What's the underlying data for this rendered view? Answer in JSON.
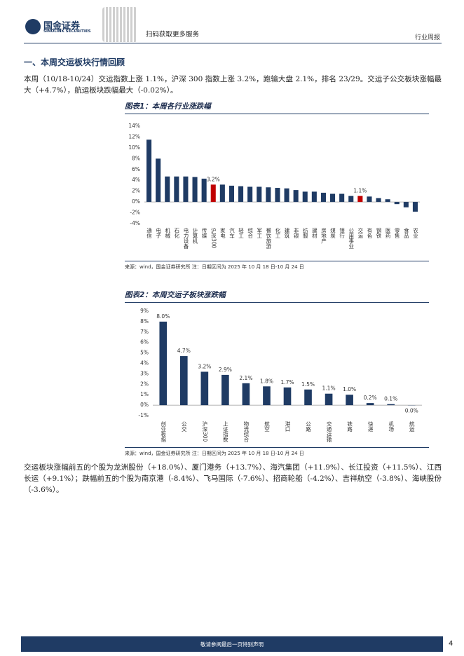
{
  "header": {
    "brand": "国金证券",
    "brand_en": "SINOLINK SECURITIES",
    "qr_caption": "扫码获取更多服务",
    "report_type": "行业周报"
  },
  "section_title": "一、本周交运板块行情回顾",
  "paragraphs": [
    "本周（10/18-10/24）交运指数上涨 1.1%，沪深 300 指数上涨 3.2%，跑输大盘 2.1%，排名 23/29。交运子公交板块涨幅最大（+4.7%），航运板块跌幅最大（-0.02%）。",
    "交运板块涨幅前五的个股为龙洲股份（+18.0%）、厦门港务（+13.7%）、海汽集团（+11.9%）、长江投资（+11.5%）、江西长运（+9.1%）；跌幅前五的个股为南京港（-8.4%）、飞马国际（-7.6%）、招商轮船（-4.2%）、吉祥航空（-3.8%）、海峡股份（-3.6%）。"
  ],
  "chart_data": [
    {
      "type": "bar",
      "title": "图表1：本周各行业涨跌幅",
      "note": "来源：wind，国金证券研究所   注：日期区间为 2025 年 10 月 18 日-10 月 24 日",
      "categories": [
        "通信",
        "电子",
        "机械",
        "石化",
        "电力设备",
        "计算机",
        "传媒",
        "沪深300",
        "家电",
        "汽车",
        "轻工",
        "综合",
        "军工",
        "餐饮旅游",
        "化工",
        "建筑",
        "非银",
        "纺服",
        "建材",
        "房地产",
        "煤炭",
        "银行",
        "公用事业",
        "交运",
        "有色",
        "钢铁",
        "医药",
        "零售",
        "食品",
        "农业"
      ],
      "values": [
        11.5,
        8.0,
        4.7,
        4.7,
        4.7,
        4.6,
        4.3,
        3.2,
        3.2,
        3.0,
        2.9,
        2.8,
        2.8,
        2.7,
        2.6,
        2.5,
        2.2,
        1.9,
        1.9,
        1.7,
        1.5,
        1.5,
        1.1,
        1.1,
        1.0,
        0.7,
        0.5,
        -0.4,
        -1.0,
        -1.8
      ],
      "value_labels": [
        null,
        null,
        null,
        null,
        null,
        null,
        null,
        "3.2%",
        null,
        null,
        null,
        null,
        null,
        null,
        null,
        null,
        null,
        null,
        null,
        null,
        null,
        null,
        null,
        "1.1%",
        null,
        null,
        null,
        null,
        null,
        null
      ],
      "colors": [
        "#1f3b64",
        "#1f3b64",
        "#1f3b64",
        "#1f3b64",
        "#1f3b64",
        "#1f3b64",
        "#1f3b64",
        "#c00000",
        "#1f3b64",
        "#1f3b64",
        "#1f3b64",
        "#1f3b64",
        "#1f3b64",
        "#1f3b64",
        "#1f3b64",
        "#1f3b64",
        "#1f3b64",
        "#1f3b64",
        "#1f3b64",
        "#1f3b64",
        "#1f3b64",
        "#1f3b64",
        "#1f3b64",
        "#c00000",
        "#1f3b64",
        "#1f3b64",
        "#1f3b64",
        "#1f3b64",
        "#1f3b64",
        "#1f3b64"
      ],
      "ylim": [
        -4,
        14
      ],
      "yticks": [
        {
          "value": -4,
          "label": "-4%"
        },
        {
          "value": -2,
          "label": "-2%"
        },
        {
          "value": 0,
          "label": "0%"
        },
        {
          "value": 2,
          "label": "2%"
        },
        {
          "value": 4,
          "label": "4%"
        },
        {
          "value": 6,
          "label": "6%"
        },
        {
          "value": 8,
          "label": "8%"
        },
        {
          "value": 10,
          "label": "10%"
        },
        {
          "value": 12,
          "label": "12%"
        },
        {
          "value": 14,
          "label": "14%"
        }
      ],
      "grid": false
    },
    {
      "type": "bar",
      "title": "图表2：本周交运子板块涨跌幅",
      "note": "来源：wind，国金证券研究所   注：日期区间为 2025 年 10 月 18 日-10 月 24 日",
      "categories": [
        "创业板指",
        "公交",
        "沪深300",
        "上证指数",
        "物流综合",
        "航空",
        "港口",
        "公路",
        "交通运输",
        "铁路",
        "快递",
        "机场",
        "航运"
      ],
      "values": [
        8.0,
        4.7,
        3.2,
        2.9,
        2.1,
        1.8,
        1.7,
        1.5,
        1.1,
        1.0,
        0.2,
        0.1,
        -0.02
      ],
      "value_labels": [
        "8.0%",
        "4.7%",
        "3.2%",
        "2.9%",
        "2.1%",
        "1.8%",
        "1.7%",
        "1.5%",
        "1.1%",
        "1.0%",
        "0.2%",
        "0.1%",
        "0.0%"
      ],
      "color": "#1f3b64",
      "ylim": [
        -1,
        9
      ],
      "yticks": [
        {
          "value": -1,
          "label": "-1%"
        },
        {
          "value": 0,
          "label": "0%"
        },
        {
          "value": 1,
          "label": "1%"
        },
        {
          "value": 2,
          "label": "2%"
        },
        {
          "value": 3,
          "label": "3%"
        },
        {
          "value": 4,
          "label": "4%"
        },
        {
          "value": 5,
          "label": "5%"
        },
        {
          "value": 6,
          "label": "6%"
        },
        {
          "value": 7,
          "label": "7%"
        },
        {
          "value": 8,
          "label": "8%"
        },
        {
          "value": 9,
          "label": "9%"
        }
      ],
      "grid": false
    }
  ],
  "footer": {
    "disclaimer": "敬请参阅最后一页特别声明",
    "page": "4"
  }
}
